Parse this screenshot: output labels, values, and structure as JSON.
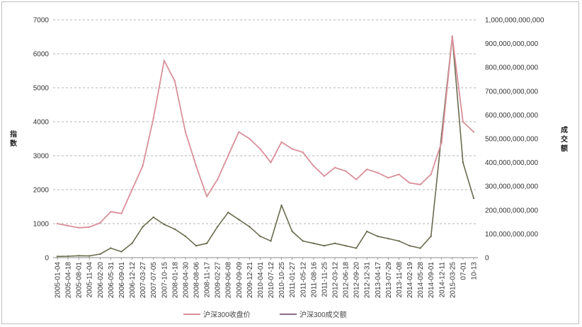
{
  "chart_data": {
    "type": "line",
    "ylabel_left": "指数",
    "ylabel_right": "成交额",
    "ylim_left": [
      0,
      7000
    ],
    "ylim_right": [
      0,
      1000000000000
    ],
    "yticks_left": [
      "0",
      "1000",
      "2000",
      "3000",
      "4000",
      "5000",
      "6000",
      "7000"
    ],
    "yticks_right": [
      "0",
      "100,000,000,000",
      "200,000,000,000",
      "300,000,000,000",
      "400,000,000,000",
      "500,000,000,000",
      "600,000,000,000",
      "700,000,000,000",
      "800,000,000,000",
      "900,000,000,000",
      "1,000,000,000,000"
    ],
    "grid": "horizontal-dashed",
    "legend_position": "bottom",
    "x_tick_labels": [
      "2005-01-04",
      "2005-04-18",
      "2005-08-01",
      "2005-11-04",
      "2006-02-20",
      "2006-05-31",
      "2006-09-01",
      "2006-12-12",
      "2007-03-27",
      "2007-07-05",
      "2007-10-15",
      "2008-01-18",
      "2008-04-30",
      "2008-08-06",
      "2008-11-17",
      "2009-02-27",
      "2009-06-08",
      "2009-09-09",
      "2009-12-21",
      "2010-04-01",
      "2010-07-12",
      "2010-10-25",
      "2011-01-27",
      "2011-05-12",
      "2011-08-16",
      "2011-11-25",
      "2012-03-12",
      "2012-06-18",
      "2012-09-20",
      "2012-12-31",
      "2013-04-17",
      "2013-07-29",
      "2013-11-08",
      "2014-02-19",
      "2014-05-28",
      "2014-09-01",
      "2014-12-11",
      "2015-03-25",
      "07-01",
      "10-13"
    ],
    "series": [
      {
        "name": "沪深300收盘价",
        "axis": "left",
        "color": "#d9909a",
        "x": [
          "2005-01-04",
          "2005-04-18",
          "2005-08-01",
          "2005-11-04",
          "2006-02-20",
          "2006-05-31",
          "2006-09-01",
          "2006-12-12",
          "2007-03-27",
          "2007-07-05",
          "2007-10-15",
          "2008-01-18",
          "2008-04-30",
          "2008-08-06",
          "2008-11-17",
          "2009-02-27",
          "2009-06-08",
          "2009-09-09",
          "2009-12-21",
          "2010-04-01",
          "2010-07-12",
          "2010-10-25",
          "2011-01-27",
          "2011-05-12",
          "2011-08-16",
          "2011-11-25",
          "2012-03-12",
          "2012-06-18",
          "2012-09-20",
          "2012-12-31",
          "2013-04-17",
          "2013-07-29",
          "2013-11-08",
          "2014-02-19",
          "2014-05-28",
          "2014-09-01",
          "2014-12-11",
          "2015-03-25",
          "07-01",
          "10-13"
        ],
        "values": [
          1000,
          940,
          880,
          900,
          1020,
          1350,
          1300,
          2000,
          2700,
          4100,
          5800,
          5200,
          3700,
          2700,
          1800,
          2300,
          3000,
          3700,
          3500,
          3200,
          2800,
          3400,
          3200,
          3100,
          2700,
          2400,
          2650,
          2550,
          2300,
          2600,
          2500,
          2350,
          2450,
          2200,
          2150,
          2450,
          3400,
          6500,
          4000,
          3700
        ]
      },
      {
        "name": "沪深300成交额",
        "axis": "right",
        "color": "#6b6b4f",
        "x": [
          "2005-01-04",
          "2005-04-18",
          "2005-08-01",
          "2005-11-04",
          "2006-02-20",
          "2006-05-31",
          "2006-09-01",
          "2006-12-12",
          "2007-03-27",
          "2007-07-05",
          "2007-10-15",
          "2008-01-18",
          "2008-04-30",
          "2008-08-06",
          "2008-11-17",
          "2009-02-27",
          "2009-06-08",
          "2009-09-09",
          "2009-12-21",
          "2010-04-01",
          "2010-07-12",
          "2010-10-25",
          "2011-01-27",
          "2011-05-12",
          "2011-08-16",
          "2011-11-25",
          "2012-03-12",
          "2012-06-18",
          "2012-09-20",
          "2012-12-31",
          "2013-04-17",
          "2013-07-29",
          "2013-11-08",
          "2014-02-19",
          "2014-05-28",
          "2014-09-01",
          "2014-12-11",
          "2015-03-25",
          "07-01",
          "10-13"
        ],
        "values": [
          5000000000,
          6000000000,
          8000000000,
          7000000000,
          15000000000,
          40000000000,
          25000000000,
          60000000000,
          130000000000,
          170000000000,
          140000000000,
          120000000000,
          90000000000,
          50000000000,
          60000000000,
          130000000000,
          190000000000,
          160000000000,
          130000000000,
          90000000000,
          70000000000,
          220000000000,
          110000000000,
          70000000000,
          60000000000,
          50000000000,
          60000000000,
          50000000000,
          40000000000,
          110000000000,
          90000000000,
          80000000000,
          70000000000,
          50000000000,
          40000000000,
          90000000000,
          520000000000,
          930000000000,
          400000000000,
          250000000000
        ]
      }
    ]
  }
}
